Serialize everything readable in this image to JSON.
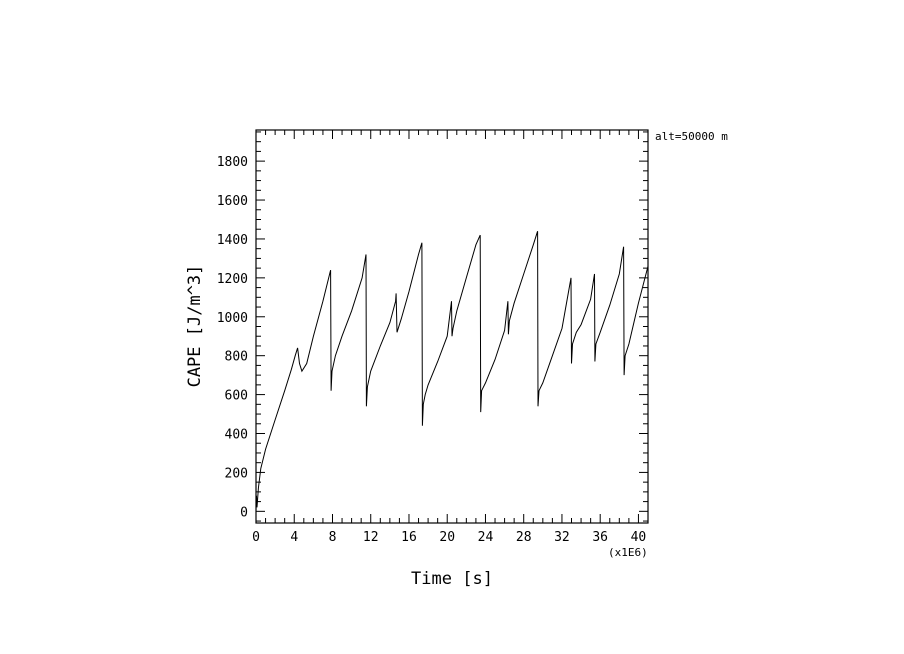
{
  "chart_data": {
    "type": "line",
    "title": "",
    "xlabel": "Time [s]",
    "ylabel": "CAPE [J/m^3]",
    "x_multiplier_label": "(x1E6)",
    "annotation": "alt=50000 m",
    "xlim": [
      0,
      41
    ],
    "ylim": [
      -60,
      1960
    ],
    "x_ticks": [
      0,
      4,
      8,
      12,
      16,
      20,
      24,
      28,
      32,
      36,
      40
    ],
    "x_tick_labels": [
      "0",
      "4",
      "8",
      "12",
      "16",
      "20",
      "24",
      "28",
      "32",
      "36",
      "40"
    ],
    "y_ticks": [
      0,
      200,
      400,
      600,
      800,
      1000,
      1200,
      1400,
      1600,
      1800
    ],
    "y_tick_labels": [
      "0",
      "200",
      "400",
      "600",
      "800",
      "1000",
      "1200",
      "1400",
      "1600",
      "1800"
    ],
    "grid": false,
    "legend": "none",
    "series": [
      {
        "color": "#000000",
        "x": [
          0.0,
          0.02,
          0.05,
          0.1,
          0.25,
          0.5,
          1.0,
          2.0,
          3.0,
          3.7,
          4.1,
          4.35,
          4.55,
          4.8,
          5.3,
          6.0,
          7.0,
          7.8,
          7.85,
          7.95,
          8.3,
          9.0,
          10.0,
          11.1,
          11.5,
          11.55,
          11.65,
          12.0,
          13.0,
          14.0,
          14.6,
          14.65,
          14.75,
          15.2,
          16.0,
          17.0,
          17.35,
          17.4,
          17.5,
          17.7,
          18.0,
          19.0,
          20.0,
          20.45,
          20.5,
          20.6,
          21.0,
          22.0,
          23.0,
          23.45,
          23.5,
          23.6,
          24.0,
          25.0,
          26.0,
          26.35,
          26.4,
          26.5,
          27.0,
          28.0,
          29.0,
          29.45,
          29.5,
          29.6,
          30.0,
          31.0,
          32.0,
          32.95,
          33.0,
          33.1,
          33.5,
          34.0,
          35.0,
          35.4,
          35.45,
          35.55,
          36.0,
          37.0,
          38.0,
          38.45,
          38.5,
          38.6,
          39.0,
          40.0,
          41.0
        ],
        "values": [
          0,
          60,
          80,
          20,
          120,
          220,
          320,
          470,
          620,
          730,
          800,
          840,
          760,
          720,
          760,
          900,
          1080,
          1240,
          620,
          720,
          800,
          900,
          1030,
          1200,
          1320,
          540,
          640,
          720,
          850,
          970,
          1080,
          1120,
          920,
          990,
          1130,
          1320,
          1380,
          440,
          550,
          600,
          650,
          770,
          900,
          1080,
          900,
          940,
          1030,
          1200,
          1370,
          1420,
          510,
          620,
          660,
          780,
          930,
          1080,
          910,
          980,
          1070,
          1220,
          1370,
          1440,
          540,
          620,
          660,
          800,
          940,
          1200,
          760,
          860,
          920,
          960,
          1090,
          1220,
          770,
          860,
          920,
          1060,
          1220,
          1360,
          700,
          800,
          860,
          1070,
          1260
        ]
      }
    ]
  }
}
